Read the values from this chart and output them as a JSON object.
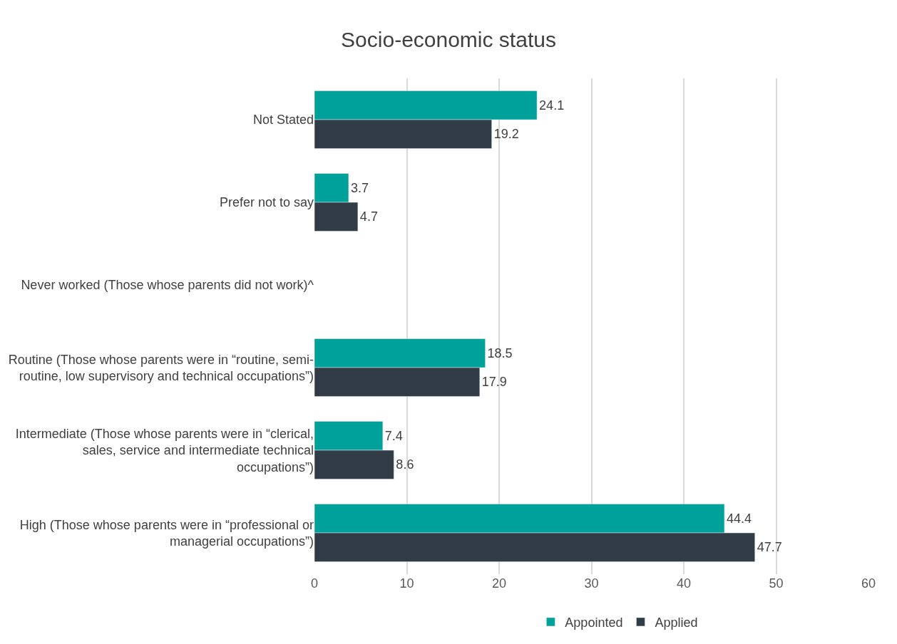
{
  "chart_data": {
    "type": "bar",
    "orientation": "horizontal",
    "title": "Socio-economic status",
    "categories": [
      "Not Stated",
      "Prefer not to say",
      "Never worked (Those whose parents did not work)^",
      "Routine (Those whose parents were in “routine, semi-routine, low supervisory and technical occupations”)",
      "Intermediate (Those whose parents were in “clerical, sales, service and intermediate technical occupations”)",
      "High (Those whose parents were in “professional or managerial occupations”)"
    ],
    "series": [
      {
        "name": "Appointed",
        "color": "#00a19a",
        "values": [
          24.1,
          3.7,
          null,
          18.5,
          7.4,
          44.4
        ]
      },
      {
        "name": "Applied",
        "color": "#323c46",
        "values": [
          19.2,
          4.7,
          null,
          17.9,
          8.6,
          47.7
        ]
      }
    ],
    "xlim": [
      0,
      60
    ],
    "xticks": [
      0,
      10,
      20,
      30,
      40,
      50,
      60
    ],
    "grid": "x",
    "legend": "bottom",
    "data_labels": true
  }
}
